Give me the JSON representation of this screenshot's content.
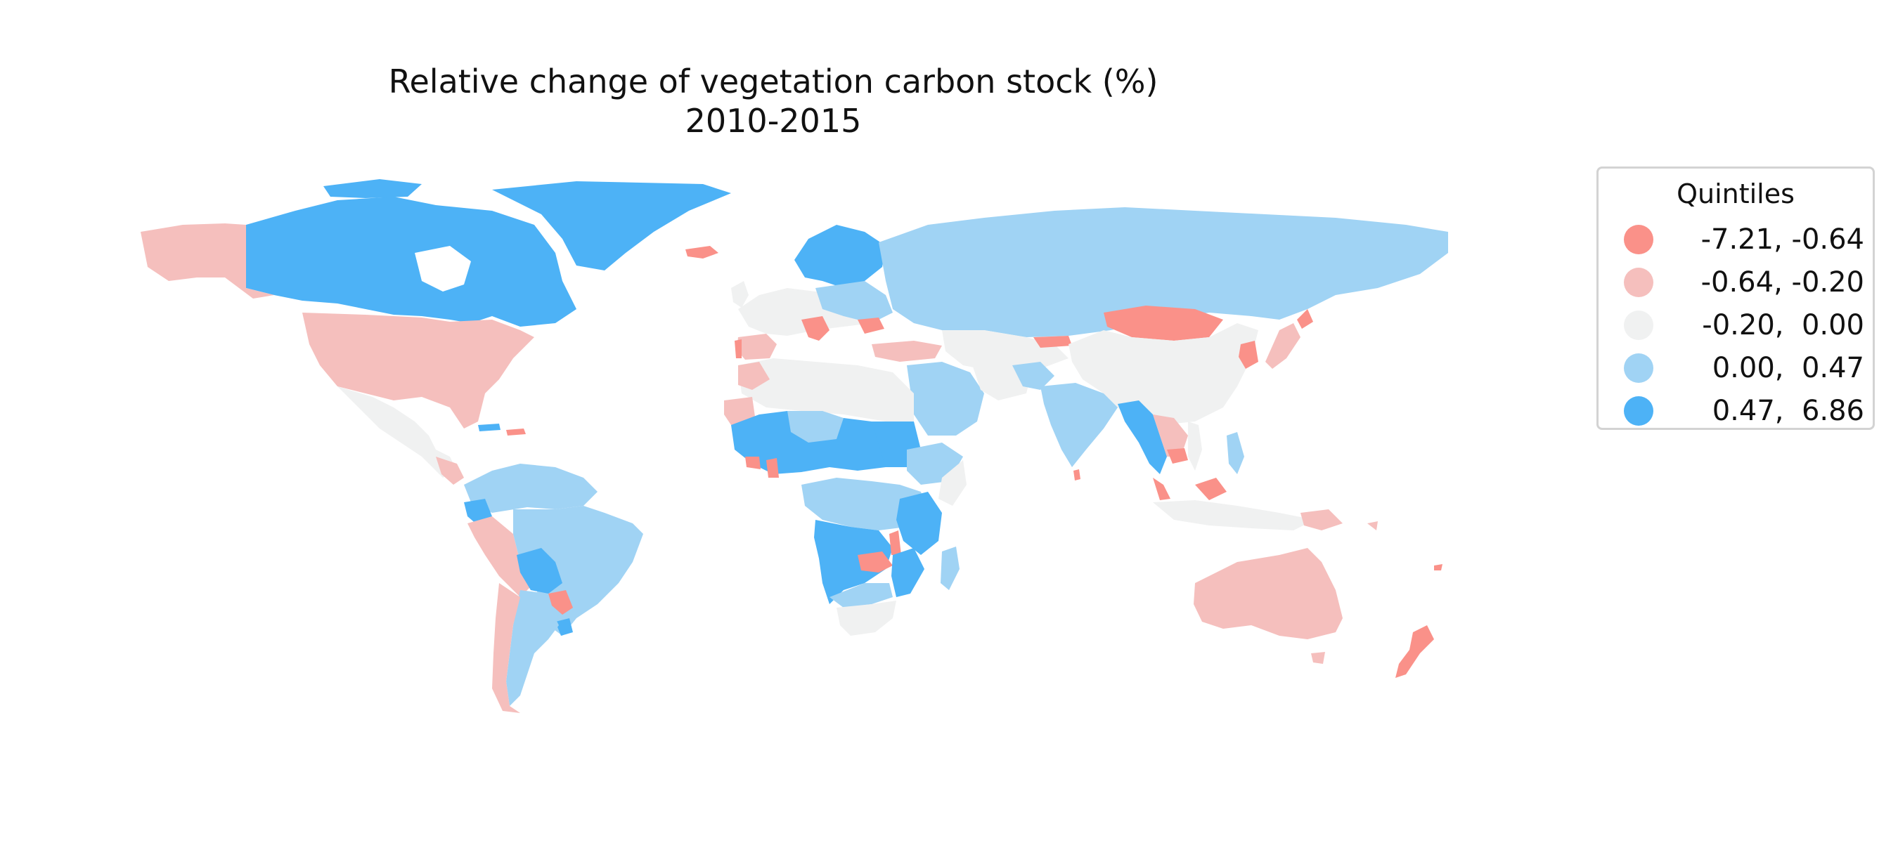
{
  "map": {
    "title_line1": "Relative change of vegetation carbon stock (%)",
    "title_line2": "2010-2015",
    "legend": {
      "title": "Quintiles",
      "classes": [
        {
          "label": "-7.21, -0.64",
          "color": "#fa9189"
        },
        {
          "label": "-0.64, -0.20",
          "color": "#f5bfbd"
        },
        {
          "label": "-0.20,  0.00",
          "color": "#f0f1f1"
        },
        {
          "label": " 0.00,  0.47",
          "color": "#a0d3f4"
        },
        {
          "label": " 0.47,  6.86",
          "color": "#4db2f6"
        }
      ]
    }
  }
}
